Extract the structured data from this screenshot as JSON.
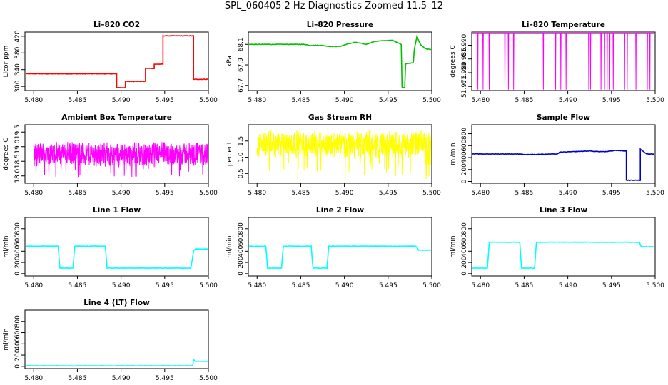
{
  "title": "SPL_060405  2 Hz Diagnostics Zoomed 11.5–12",
  "chart_data": [
    {
      "type": "line",
      "title": "Li–820 CO2",
      "ylabel": "Licor ppm",
      "color": "#ff0000",
      "xlim": [
        5.479,
        5.5
      ],
      "ylim": [
        290,
        430
      ],
      "yticks": [
        300,
        340,
        380,
        420
      ],
      "x": [
        5.479,
        5.4895,
        5.4895,
        5.4905,
        5.4905,
        5.4915,
        5.4915,
        5.4928,
        5.4928,
        5.4938,
        5.4938,
        5.4948,
        5.4948,
        5.4983,
        5.4983,
        5.5
      ],
      "y": [
        330,
        330,
        297,
        297,
        312,
        312,
        312,
        312,
        343,
        343,
        353,
        353,
        421,
        421,
        317,
        317
      ]
    },
    {
      "type": "line",
      "title": "Li–820 Pressure",
      "ylabel": "kPa",
      "color": "#00c000",
      "xlim": [
        5.479,
        5.5
      ],
      "ylim": [
        67.65,
        68.22
      ],
      "yticks": [
        67.7,
        67.9,
        68.1
      ],
      "x": [
        5.479,
        5.4855,
        5.486,
        5.4875,
        5.4882,
        5.4895,
        5.4902,
        5.4912,
        5.4925,
        5.4935,
        5.4955,
        5.4965,
        5.4966,
        5.4969,
        5.497,
        5.4978,
        5.4979,
        5.498,
        5.4983,
        5.4987,
        5.4992,
        5.4998,
        5.5
      ],
      "y": [
        68.1,
        68.1,
        68.09,
        68.09,
        68.08,
        68.08,
        68.1,
        68.12,
        68.1,
        68.13,
        68.14,
        68.1,
        67.68,
        67.68,
        67.91,
        67.92,
        67.93,
        68.05,
        68.18,
        68.1,
        68.06,
        68.05,
        68.05
      ]
    },
    {
      "type": "line",
      "title": "Li–820 Temperature",
      "ylabel": "degrees C",
      "color": "#ff00ff",
      "xlim": [
        5.479,
        5.5
      ],
      "ylim": [
        51.9735,
        51.9948
      ],
      "yticks": [
        51.975,
        51.98,
        51.985,
        51.99
      ],
      "baseline": 51.9945,
      "dip_value": 51.9738,
      "dips": [
        5.4797,
        5.4803,
        5.481,
        5.4828,
        5.4832,
        5.4838,
        5.4872,
        5.4886,
        5.4892,
        5.4898,
        5.4924,
        5.4926,
        5.4938,
        5.4942,
        5.4945,
        5.4948,
        5.4952,
        5.4965,
        5.4968,
        5.4978,
        5.4991,
        5.4994
      ]
    },
    {
      "type": "line",
      "title": "Ambient Box Temperature",
      "ylabel": "degrees C",
      "color": "#ff00ff",
      "xlim": [
        5.479,
        5.5
      ],
      "ylim": [
        17.75,
        19.75
      ],
      "yticks": [
        18.0,
        18.5,
        19.0,
        19.5
      ],
      "center": 18.75,
      "spread": 0.45,
      "spike_low": 17.95
    },
    {
      "type": "line",
      "title": "Gas Stream RH",
      "ylabel": "percent",
      "color": "#ffff00",
      "xlim": [
        5.479,
        5.5
      ],
      "ylim": [
        0.2,
        2.0
      ],
      "yticks": [
        0.5,
        1.0,
        1.5
      ],
      "center": 1.4,
      "spread": 0.45,
      "spike_low": 0.3
    },
    {
      "type": "line",
      "title": "Sample Flow",
      "ylabel": "ml/min",
      "color": "#0000c8",
      "xlim": [
        5.479,
        5.5
      ],
      "ylim": [
        -30,
        950
      ],
      "yticks": [
        0,
        200,
        400,
        600,
        800
      ],
      "x": [
        5.479,
        5.4845,
        5.485,
        5.4888,
        5.4891,
        5.4925,
        5.4935,
        5.4945,
        5.4955,
        5.4967,
        5.4967,
        5.4983,
        5.4983,
        5.4985,
        5.499,
        5.5
      ],
      "y": [
        460,
        460,
        450,
        460,
        490,
        510,
        500,
        500,
        520,
        510,
        20,
        20,
        540,
        520,
        460,
        460
      ]
    },
    {
      "type": "line",
      "title": "Line 1 Flow",
      "ylabel": "ml/min",
      "color": "#00ffff",
      "xlim": [
        5.479,
        5.5
      ],
      "ylim": [
        -40,
        1000
      ],
      "yticks": [
        0,
        200,
        400,
        600,
        800
      ],
      "x": [
        5.479,
        5.4828,
        5.483,
        5.4845,
        5.4847,
        5.4882,
        5.4884,
        5.498,
        5.4983,
        5.4985,
        5.5
      ],
      "y": [
        490,
        490,
        100,
        100,
        490,
        490,
        100,
        100,
        400,
        440,
        440
      ]
    },
    {
      "type": "line",
      "title": "Line 2 Flow",
      "ylabel": "ml/min",
      "color": "#00ffff",
      "xlim": [
        5.479,
        5.5
      ],
      "ylim": [
        -40,
        1000
      ],
      "yticks": [
        0,
        200,
        400,
        600,
        800
      ],
      "x": [
        5.479,
        5.481,
        5.4812,
        5.4828,
        5.483,
        5.4862,
        5.4864,
        5.488,
        5.4882,
        5.4982,
        5.4985,
        5.5
      ],
      "y": [
        490,
        490,
        100,
        100,
        490,
        490,
        100,
        100,
        490,
        490,
        420,
        420
      ]
    },
    {
      "type": "line",
      "title": "Line 3 Flow",
      "ylabel": "ml/min",
      "color": "#00ffff",
      "xlim": [
        5.479,
        5.5
      ],
      "ylim": [
        -40,
        1000
      ],
      "yticks": [
        0,
        200,
        400,
        600,
        800
      ],
      "x": [
        5.479,
        5.4808,
        5.481,
        5.4845,
        5.4847,
        5.4862,
        5.4864,
        5.4982,
        5.4984,
        5.5
      ],
      "y": [
        100,
        100,
        560,
        560,
        100,
        100,
        560,
        560,
        480,
        480
      ]
    },
    {
      "type": "line",
      "title": "Line 4 (LT) Flow",
      "ylabel": "ml/min",
      "color": "#00ffff",
      "xlim": [
        5.479,
        5.5
      ],
      "ylim": [
        -40,
        1000
      ],
      "yticks": [
        0,
        200,
        400,
        600,
        800
      ],
      "x": [
        5.479,
        5.4982,
        5.4983,
        5.4985,
        5.5
      ],
      "y": [
        10,
        10,
        120,
        90,
        90
      ]
    }
  ],
  "xticks": [
    5.48,
    5.485,
    5.49,
    5.495,
    5.5
  ],
  "xtick_labels": [
    "5.480",
    "5.485",
    "5.490",
    "5.495",
    "5.500"
  ]
}
